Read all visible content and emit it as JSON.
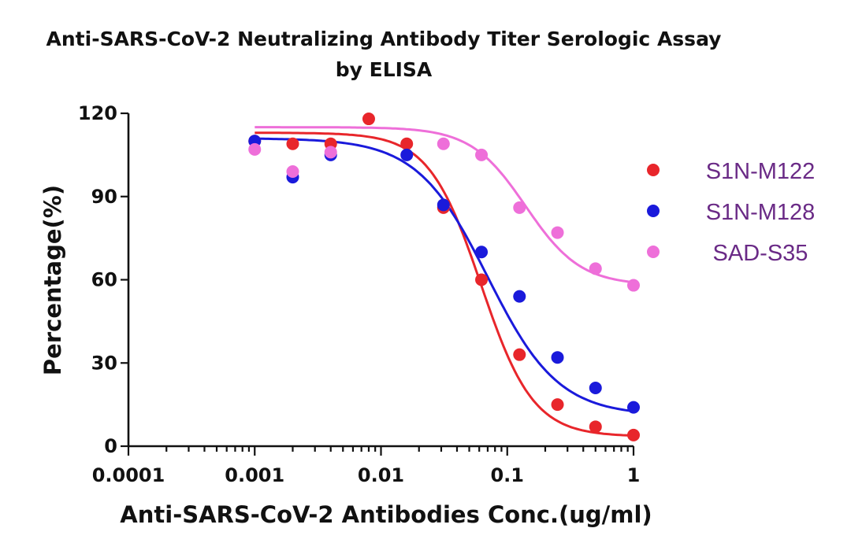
{
  "chart_data": {
    "type": "scatter",
    "title": "Anti-SARS-CoV-2 Neutralizing Antibody Titer Serologic Assay",
    "subtitle": "by ELISA",
    "xlabel": "Anti-SARS-CoV-2 Antibodies Conc.(ug/ml)",
    "ylabel": "Percentage(%)",
    "xscale": "log10",
    "xlim": [
      0.0001,
      1
    ],
    "ylim": [
      0,
      120
    ],
    "x_ticks": [
      "0.0001",
      "0.001",
      "0.01",
      "0.1",
      "1"
    ],
    "y_ticks": [
      "0",
      "30",
      "60",
      "90",
      "120"
    ],
    "legend_position": "right",
    "grid": false,
    "series": [
      {
        "name": "S1N-M122",
        "color": "#e8262b",
        "x": [
          0.001,
          0.002,
          0.004,
          0.008,
          0.016,
          0.03125,
          0.0625,
          0.125,
          0.25,
          0.5,
          1
        ],
        "y": [
          110,
          109,
          109,
          118,
          109,
          86,
          60,
          33,
          15,
          7,
          4
        ],
        "fit": {
          "model": "4PL",
          "top": 113,
          "bottom": 3.5,
          "ec50": 0.062,
          "hill": 2.1
        }
      },
      {
        "name": "S1N-M128",
        "color": "#1a1adb",
        "x": [
          0.001,
          0.002,
          0.004,
          0.016,
          0.03125,
          0.0625,
          0.125,
          0.25,
          0.5,
          1
        ],
        "y": [
          110,
          97,
          105,
          105,
          87,
          70,
          54,
          32,
          21,
          14
        ],
        "fit": {
          "model": "4PL",
          "top": 111,
          "bottom": 11,
          "ec50": 0.07,
          "hill": 1.55
        }
      },
      {
        "name": "SAD-S35",
        "color": "#ee6fd9",
        "x": [
          0.001,
          0.002,
          0.004,
          0.03125,
          0.0625,
          0.125,
          0.25,
          0.5,
          1
        ],
        "y": [
          107,
          99,
          106,
          109,
          105,
          86,
          77,
          64,
          58
        ],
        "fit": {
          "model": "4PL",
          "top": 115,
          "bottom": 58,
          "ec50": 0.14,
          "hill": 2.0
        }
      }
    ]
  }
}
